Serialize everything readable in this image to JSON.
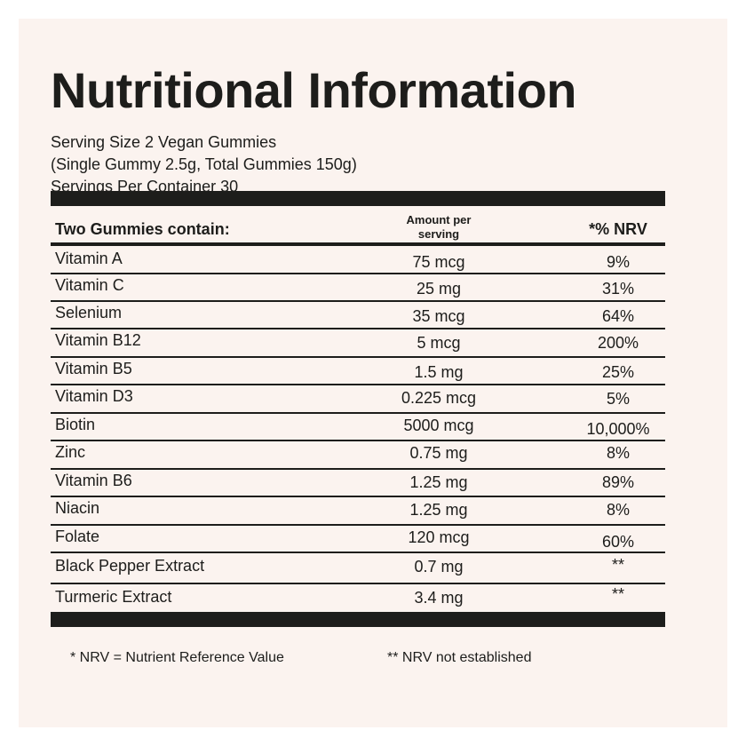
{
  "title": "Nutritional Information",
  "serving": {
    "line1": "Serving Size 2 Vegan Gummies",
    "line2": "(Single Gummy 2.5g, Total Gummies 150g)",
    "line3": "Servings Per Container 30"
  },
  "table": {
    "header_left": "Two Gummies contain:",
    "header_mid_line1": "Amount per",
    "header_mid_line2": "serving",
    "header_right": "*% NRV",
    "rows": [
      {
        "name": "Vitamin A",
        "amount": "75 mcg",
        "nrv": "9%"
      },
      {
        "name": "Vitamin C",
        "amount": "25 mg",
        "nrv": "31%"
      },
      {
        "name": "Selenium",
        "amount": "35 mcg",
        "nrv": "64%"
      },
      {
        "name": "Vitamin B12",
        "amount": "5 mcg",
        "nrv": "200%"
      },
      {
        "name": "Vitamin B5",
        "amount": "1.5 mg",
        "nrv": "25%"
      },
      {
        "name": "Vitamin D3",
        "amount": "0.225 mcg",
        "nrv": "5%"
      },
      {
        "name": "Biotin",
        "amount": "5000 mcg",
        "nrv": "10,000%"
      },
      {
        "name": "Zinc",
        "amount": "0.75 mg",
        "nrv": "8%"
      },
      {
        "name": "Vitamin B6",
        "amount": "1.25 mg",
        "nrv": "89%"
      },
      {
        "name": "Niacin",
        "amount": "1.25 mg",
        "nrv": "8%"
      },
      {
        "name": "Folate",
        "amount": "120 mcg",
        "nrv": "60%"
      },
      {
        "name": "Black Pepper Extract",
        "amount": "0.7 mg",
        "nrv": "**"
      },
      {
        "name": "Turmeric Extract",
        "amount": "3.4 mg",
        "nrv": "**"
      }
    ]
  },
  "footnotes": {
    "nrv_definition": "* NRV = Nutrient Reference Value",
    "not_established": "** NRV not established"
  },
  "colors": {
    "background": "#fbf3ef",
    "ink": "#1d1d1b"
  }
}
